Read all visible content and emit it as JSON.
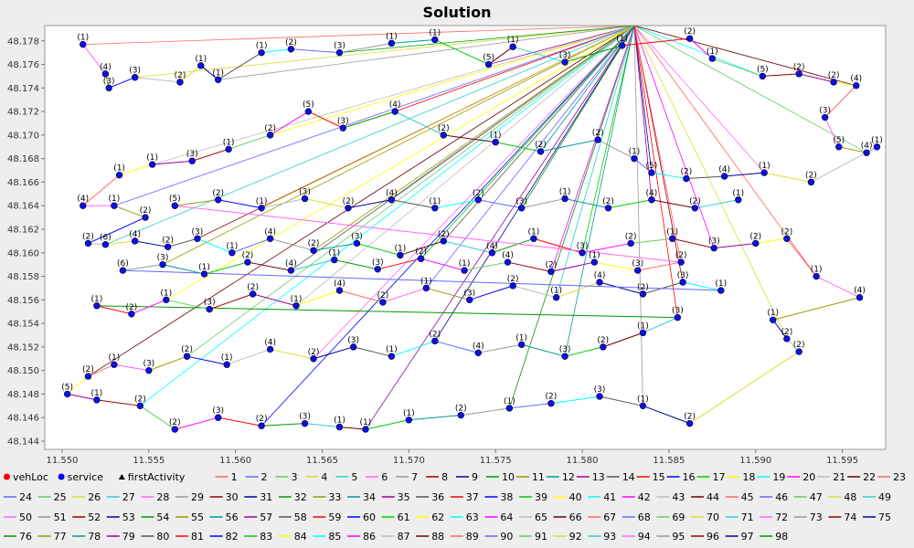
{
  "chart_data": {
    "type": "scatter",
    "title": "Solution",
    "xlabel": "",
    "ylabel": "",
    "xlim": [
      11.549,
      11.5975
    ],
    "ylim": [
      48.1433,
      48.1793
    ],
    "x_ticks": [
      "11.550",
      "11.555",
      "11.560",
      "11.565",
      "11.570",
      "11.575",
      "11.580",
      "11.585",
      "11.590",
      "11.595"
    ],
    "y_ticks": [
      "48.144",
      "48.146",
      "48.148",
      "48.150",
      "48.152",
      "48.154",
      "48.156",
      "48.158",
      "48.160",
      "48.162",
      "48.164",
      "48.166",
      "48.168",
      "48.170",
      "48.172",
      "48.174",
      "48.176",
      "48.178"
    ],
    "grid": false,
    "legend_placement": "bottom",
    "depot": [
      11.583,
      48.183
    ],
    "marker_legend": [
      {
        "name": "vehLoc",
        "symbol": "circle",
        "color": "#ff0000"
      },
      {
        "name": "service",
        "symbol": "circle",
        "color": "#0000ff"
      },
      {
        "name": "firstActivity",
        "symbol": "triangle",
        "color": "#000000"
      }
    ],
    "route_names": [
      "1",
      "2",
      "3",
      "4",
      "5",
      "6",
      "7",
      "8",
      "9",
      "10",
      "11",
      "12",
      "13",
      "14",
      "15",
      "16",
      "17",
      "18",
      "19",
      "20",
      "21",
      "22",
      "23",
      "24",
      "25",
      "26",
      "27",
      "28",
      "29",
      "30",
      "31",
      "32",
      "33",
      "34",
      "35",
      "36",
      "37",
      "38",
      "39",
      "40",
      "41",
      "42",
      "43",
      "44",
      "45",
      "46",
      "47",
      "48",
      "49",
      "50",
      "51",
      "52",
      "53",
      "54",
      "55",
      "56",
      "57",
      "58",
      "59",
      "60",
      "61",
      "62",
      "63",
      "64",
      "65",
      "66",
      "67",
      "68",
      "69",
      "70",
      "71",
      "72",
      "73",
      "74",
      "75",
      "76",
      "77",
      "78",
      "79",
      "80",
      "81",
      "82",
      "83",
      "84",
      "85",
      "86",
      "87",
      "88",
      "89",
      "90",
      "91",
      "92",
      "93",
      "94",
      "95",
      "96",
      "97",
      "98"
    ],
    "route_colors": [
      "#ff6666",
      "#6666ff",
      "#66cc66",
      "#dddd33",
      "#33cccc",
      "#ff66ff",
      "#999999",
      "#990000",
      "#000099",
      "#009900",
      "#999900",
      "#009999",
      "#990099",
      "#555555",
      "#ff0000",
      "#0000ff",
      "#00cc00",
      "#ffff00",
      "#00ffff",
      "#ff00ff",
      "#bbbbbb",
      "#660000"
    ],
    "points": [
      [
        11.5512,
        48.1777,
        "(1)"
      ],
      [
        11.5525,
        48.1752,
        "(4)"
      ],
      [
        11.5527,
        48.174,
        "(3)"
      ],
      [
        11.5542,
        48.1749,
        "(3)"
      ],
      [
        11.5568,
        48.1745,
        "(2)"
      ],
      [
        11.558,
        48.1759,
        "(1)"
      ],
      [
        11.559,
        48.1747,
        "(1)"
      ],
      [
        11.5615,
        48.177,
        "(1)"
      ],
      [
        11.5632,
        48.1773,
        "(2)"
      ],
      [
        11.566,
        48.177,
        "(3)"
      ],
      [
        11.569,
        48.1778,
        "(1)"
      ],
      [
        11.5715,
        48.1781,
        "(1)"
      ],
      [
        11.5746,
        48.176,
        "(5)"
      ],
      [
        11.576,
        48.1775,
        "(1)"
      ],
      [
        11.579,
        48.1762,
        "(3)"
      ],
      [
        11.5823,
        48.1776,
        "(1)"
      ],
      [
        11.5862,
        48.1782,
        "(2)"
      ],
      [
        11.5875,
        48.1765,
        "(1)"
      ],
      [
        11.5904,
        48.175,
        "(5)"
      ],
      [
        11.5925,
        48.1752,
        "(2)"
      ],
      [
        11.5945,
        48.1745,
        "(2)"
      ],
      [
        11.5958,
        48.1742,
        "(4)"
      ],
      [
        11.594,
        48.1715,
        "(3)"
      ],
      [
        11.5948,
        48.169,
        "(5)"
      ],
      [
        11.5964,
        48.1685,
        "(4)"
      ],
      [
        11.597,
        48.169,
        "(1)"
      ],
      [
        11.5932,
        48.166,
        "(2)"
      ],
      [
        11.5905,
        48.1668,
        "(1)"
      ],
      [
        11.5882,
        48.1665,
        "(4)"
      ],
      [
        11.586,
        48.1663,
        "(2)"
      ],
      [
        11.584,
        48.1668,
        "(5)"
      ],
      [
        11.583,
        48.168,
        "(1)"
      ],
      [
        11.5809,
        48.1696,
        "(2)"
      ],
      [
        11.5776,
        48.1686,
        "(2)"
      ],
      [
        11.575,
        48.1694,
        "(1)"
      ],
      [
        11.572,
        48.17,
        "(2)"
      ],
      [
        11.5692,
        48.172,
        "(4)"
      ],
      [
        11.5662,
        48.1706,
        "(3)"
      ],
      [
        11.5642,
        48.172,
        "(5)"
      ],
      [
        11.562,
        48.17,
        "(2)"
      ],
      [
        11.5596,
        48.1688,
        "(1)"
      ],
      [
        11.5575,
        48.1678,
        "(3)"
      ],
      [
        11.5552,
        48.1675,
        "(1)"
      ],
      [
        11.5533,
        48.1666,
        "(1)"
      ],
      [
        11.5512,
        48.164,
        "(4)"
      ],
      [
        11.553,
        48.164,
        "(1)"
      ],
      [
        11.5548,
        48.163,
        "(2)"
      ],
      [
        11.5515,
        48.1608,
        "(2)"
      ],
      [
        11.5525,
        48.1607,
        "(6)"
      ],
      [
        11.5542,
        48.161,
        "(4)"
      ],
      [
        11.5561,
        48.1605,
        "(2)"
      ],
      [
        11.5578,
        48.1612,
        "(3)"
      ],
      [
        11.5598,
        48.16,
        "(1)"
      ],
      [
        11.562,
        48.1612,
        "(4)"
      ],
      [
        11.5645,
        48.1602,
        "(2)"
      ],
      [
        11.567,
        48.1608,
        "(3)"
      ],
      [
        11.5695,
        48.1598,
        "(1)"
      ],
      [
        11.572,
        48.161,
        "(2)"
      ],
      [
        11.5748,
        48.16,
        "(4)"
      ],
      [
        11.5772,
        48.1612,
        "(1)"
      ],
      [
        11.58,
        48.16,
        "(3)"
      ],
      [
        11.5828,
        48.1608,
        "(2)"
      ],
      [
        11.5852,
        48.1612,
        "(1)"
      ],
      [
        11.5876,
        48.1604,
        "(3)"
      ],
      [
        11.59,
        48.1608,
        "(2)"
      ],
      [
        11.5918,
        48.1612,
        "(2)"
      ],
      [
        11.5935,
        48.158,
        "(1)"
      ],
      [
        11.596,
        48.1562,
        "(4)"
      ],
      [
        11.591,
        48.1543,
        "(1)"
      ],
      [
        11.5918,
        48.1527,
        "(2)"
      ],
      [
        11.5925,
        48.1516,
        "(2)"
      ],
      [
        11.5862,
        48.1455,
        "(2)"
      ],
      [
        11.5835,
        48.147,
        "(1)"
      ],
      [
        11.581,
        48.1478,
        "(3)"
      ],
      [
        11.5782,
        48.1472,
        "(2)"
      ],
      [
        11.5758,
        48.1468,
        "(1)"
      ],
      [
        11.573,
        48.1462,
        "(2)"
      ],
      [
        11.57,
        48.1458,
        "(1)"
      ],
      [
        11.5675,
        48.145,
        "(1)"
      ],
      [
        11.566,
        48.1452,
        "(1)"
      ],
      [
        11.564,
        48.1455,
        "(3)"
      ],
      [
        11.5615,
        48.1453,
        "(2)"
      ],
      [
        11.559,
        48.146,
        "(3)"
      ],
      [
        11.5565,
        48.145,
        "(2)"
      ],
      [
        11.5545,
        48.147,
        "(2)"
      ],
      [
        11.552,
        48.1475,
        "(1)"
      ],
      [
        11.5503,
        48.148,
        "(5)"
      ],
      [
        11.5515,
        48.1495,
        "(2)"
      ],
      [
        11.553,
        48.1505,
        "(1)"
      ],
      [
        11.555,
        48.15,
        "(3)"
      ],
      [
        11.5572,
        48.1512,
        "(2)"
      ],
      [
        11.5595,
        48.1505,
        "(1)"
      ],
      [
        11.562,
        48.1518,
        "(4)"
      ],
      [
        11.5645,
        48.151,
        "(2)"
      ],
      [
        11.5668,
        48.152,
        "(3)"
      ],
      [
        11.569,
        48.1512,
        "(1)"
      ],
      [
        11.5715,
        48.1525,
        "(2)"
      ],
      [
        11.574,
        48.1515,
        "(4)"
      ],
      [
        11.5765,
        48.1522,
        "(1)"
      ],
      [
        11.579,
        48.1512,
        "(3)"
      ],
      [
        11.5812,
        48.152,
        "(2)"
      ],
      [
        11.5835,
        48.1532,
        "(1)"
      ],
      [
        11.5855,
        48.1545,
        "(3)"
      ],
      [
        11.552,
        48.1555,
        "(1)"
      ],
      [
        11.554,
        48.1548,
        "(2)"
      ],
      [
        11.556,
        48.156,
        "(1)"
      ],
      [
        11.5585,
        48.1552,
        "(3)"
      ],
      [
        11.561,
        48.1565,
        "(2)"
      ],
      [
        11.5635,
        48.1555,
        "(1)"
      ],
      [
        11.566,
        48.1568,
        "(4)"
      ],
      [
        11.5685,
        48.1558,
        "(2)"
      ],
      [
        11.571,
        48.157,
        "(1)"
      ],
      [
        11.5735,
        48.156,
        "(3)"
      ],
      [
        11.576,
        48.1572,
        "(2)"
      ],
      [
        11.5785,
        48.1562,
        "(1)"
      ],
      [
        11.581,
        48.1575,
        "(4)"
      ],
      [
        11.5835,
        48.1565,
        "(2)"
      ],
      [
        11.5858,
        48.1575,
        "(3)"
      ],
      [
        11.588,
        48.1568,
        "(1)"
      ],
      [
        11.5535,
        48.1585,
        "(6)"
      ],
      [
        11.5558,
        48.159,
        "(3)"
      ],
      [
        11.5582,
        48.1582,
        "(1)"
      ],
      [
        11.5607,
        48.1592,
        "(2)"
      ],
      [
        11.5632,
        48.1585,
        "(4)"
      ],
      [
        11.5657,
        48.1594,
        "(1)"
      ],
      [
        11.5682,
        48.1586,
        "(3)"
      ],
      [
        11.5707,
        48.1595,
        "(2)"
      ],
      [
        11.5732,
        48.1585,
        "(1)"
      ],
      [
        11.5757,
        48.1592,
        "(4)"
      ],
      [
        11.5782,
        48.1584,
        "(2)"
      ],
      [
        11.5807,
        48.1592,
        "(1)"
      ],
      [
        11.5832,
        48.1585,
        "(3)"
      ],
      [
        11.5857,
        48.1592,
        "(2)"
      ],
      [
        11.5565,
        48.164,
        "(5)"
      ],
      [
        11.559,
        48.1645,
        "(2)"
      ],
      [
        11.5615,
        48.1638,
        "(1)"
      ],
      [
        11.564,
        48.1646,
        "(3)"
      ],
      [
        11.5665,
        48.1638,
        "(2)"
      ],
      [
        11.569,
        48.1645,
        "(4)"
      ],
      [
        11.5715,
        48.1638,
        "(1)"
      ],
      [
        11.574,
        48.1645,
        "(2)"
      ],
      [
        11.5765,
        48.1638,
        "(3)"
      ],
      [
        11.579,
        48.1646,
        "(1)"
      ],
      [
        11.5815,
        48.1638,
        "(2)"
      ],
      [
        11.584,
        48.1645,
        "(4)"
      ],
      [
        11.5865,
        48.1638,
        "(2)"
      ],
      [
        11.589,
        48.1645,
        "(1)"
      ]
    ]
  }
}
